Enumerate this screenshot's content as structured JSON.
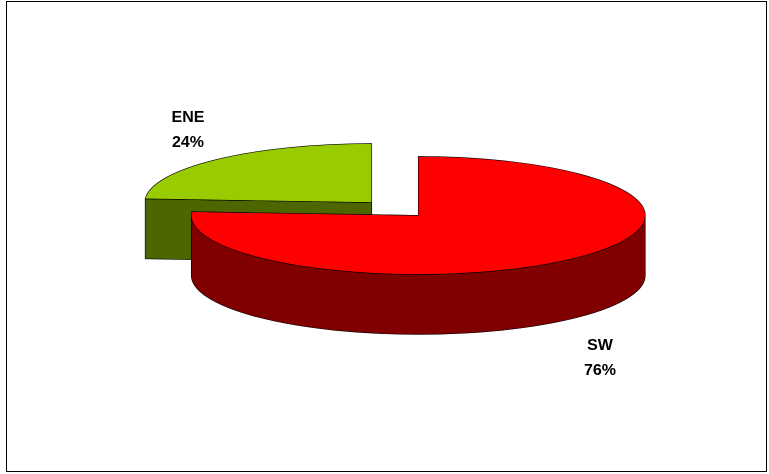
{
  "chart_data": {
    "type": "pie3d",
    "categories": [
      "ENE",
      "SW"
    ],
    "values": [
      24,
      76
    ],
    "value_labels": [
      "24%",
      "76%"
    ],
    "colors": [
      "#99cc00",
      "#ff0000"
    ],
    "exploded": true
  }
}
